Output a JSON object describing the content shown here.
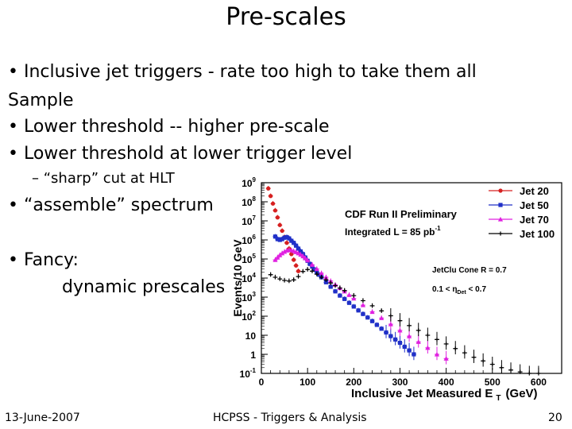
{
  "slide": {
    "title": "Pre-scales",
    "bullets": [
      "• Inclusive jet triggers - rate too high to take them all",
      "Sample",
      "• Lower threshold -- higher pre-scale",
      "• Lower threshold at lower trigger level",
      "– “sharp” cut at HLT",
      "• “assemble” spectrum",
      "• Fancy:",
      "dynamic prescales"
    ],
    "footer": {
      "date": "13-June-2007",
      "center": "HCPSS - Triggers & Analysis",
      "page": "20"
    }
  },
  "chart_data": {
    "type": "scatter",
    "title": "",
    "xlabel": "Inclusive Jet Measured E",
    "xlabel_sub": "T",
    "xlabel_unit": "(GeV)",
    "ylabel": "Events/10 GeV",
    "yscale": "log",
    "xlim": [
      0,
      650
    ],
    "ylim_exp": [
      -1,
      9
    ],
    "x_ticks": [
      "0",
      "100",
      "200",
      "300",
      "400",
      "500",
      "600"
    ],
    "y_ticks": [
      {
        "base": "10",
        "exp": "9"
      },
      {
        "base": "10",
        "exp": "8"
      },
      {
        "base": "10",
        "exp": "7"
      },
      {
        "base": "10",
        "exp": "6"
      },
      {
        "base": "10",
        "exp": "5"
      },
      {
        "base": "10",
        "exp": "4"
      },
      {
        "base": "10",
        "exp": "3"
      },
      {
        "base": "10",
        "exp": "2"
      },
      {
        "base": "10",
        "exp": ""
      },
      {
        "base": "1",
        "exp": ""
      },
      {
        "base": "10",
        "exp": "-1"
      }
    ],
    "annotations": {
      "line1": "CDF Run II Preliminary",
      "line2": "Integrated L = 85 pb",
      "line2_sup": "-1",
      "cone": "JetClu Cone R = 0.7",
      "eta_pre": "0.1 < ",
      "eta_sym": "η",
      "eta_sub": "Det",
      "eta_post": " < 0.7"
    },
    "legend_position": "top-right",
    "series": [
      {
        "name": "Jet 20",
        "color": "#d62020",
        "marker": "circle",
        "x": [
          15,
          20,
          25,
          30,
          35,
          40,
          45,
          50,
          55,
          60,
          65,
          70,
          75,
          80
        ],
        "y": [
          500000000.0,
          200000000.0,
          80000000.0,
          35000000.0,
          15000000.0,
          6000000.0,
          3000000.0,
          1400000.0,
          700000.0,
          350000.0,
          180000.0,
          90000.0,
          45000.0,
          23000.0
        ]
      },
      {
        "name": "Jet 50",
        "color": "#2030c8",
        "marker": "square",
        "x": [
          30,
          35,
          40,
          45,
          50,
          55,
          60,
          65,
          70,
          75,
          80,
          85,
          90,
          95,
          100,
          105,
          110,
          115,
          120,
          125,
          130,
          140,
          150,
          160,
          170,
          180,
          190,
          200,
          210,
          220,
          230,
          240,
          250,
          260,
          270,
          280,
          290,
          300,
          310,
          320,
          330
        ],
        "y": [
          1500000.0,
          1100000.0,
          1000000.0,
          1100000.0,
          1300000.0,
          1400000.0,
          1200000.0,
          900000.0,
          700000.0,
          500000.0,
          350000.0,
          250000.0,
          180000.0,
          120000.0,
          80000.0,
          55000.0,
          40000.0,
          28000.0,
          20000.0,
          15000.0,
          11000.0,
          6000.0,
          3500.0,
          2000.0,
          1200.0,
          800,
          500,
          320,
          200,
          130,
          85,
          55,
          35,
          22,
          14,
          9,
          6,
          4,
          2.5,
          1.6,
          1
        ]
      },
      {
        "name": "Jet 70",
        "color": "#e020e0",
        "marker": "triangle",
        "x": [
          30,
          35,
          40,
          45,
          50,
          55,
          60,
          65,
          70,
          75,
          80,
          85,
          90,
          95,
          100,
          110,
          120,
          130,
          140,
          150,
          160,
          170,
          180,
          190,
          200,
          220,
          240,
          260,
          280,
          300,
          320,
          340,
          360,
          380,
          400
        ],
        "y": [
          90000.0,
          120000.0,
          160000.0,
          200000.0,
          240000.0,
          280000.0,
          300000.0,
          290000.0,
          260000.0,
          230000.0,
          200000.0,
          170000.0,
          140000.0,
          110000.0,
          85000.0,
          50000.0,
          30000.0,
          18000.0,
          11000.0,
          7000.0,
          4500.0,
          3000.0,
          2000.0,
          1300.0,
          850,
          380,
          170,
          80,
          38,
          18,
          9,
          4.5,
          2.2,
          1,
          0.6
        ]
      },
      {
        "name": "Jet 100",
        "color": "#000000",
        "marker": "star",
        "x": [
          20,
          30,
          40,
          50,
          60,
          70,
          80,
          90,
          100,
          110,
          120,
          130,
          140,
          150,
          160,
          170,
          180,
          200,
          220,
          240,
          260,
          280,
          300,
          320,
          340,
          360,
          380,
          400,
          420,
          440,
          460,
          480,
          500,
          520,
          540,
          560,
          580,
          600
        ],
        "y": [
          15000.0,
          11000.0,
          9000.0,
          7500.0,
          7000.0,
          8000.0,
          12000.0,
          22000.0,
          28000.0,
          23000.0,
          16000.0,
          11000.0,
          8000.0,
          5500.0,
          4000.0,
          3000.0,
          2200.0,
          1200.0,
          650,
          350,
          190,
          105,
          58,
          32,
          18,
          10,
          6,
          3.5,
          2,
          1.2,
          0.7,
          0.45,
          0.3,
          0.2,
          0.15,
          0.12,
          0.1,
          0.1
        ]
      }
    ]
  }
}
